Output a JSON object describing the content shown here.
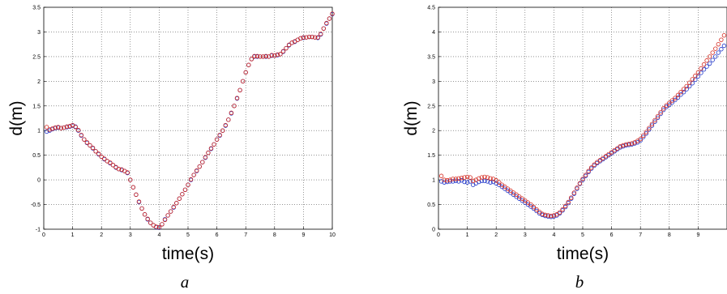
{
  "colors": {
    "series_a": "#1f35c8",
    "series_b": "#d4281e"
  },
  "chart_data": [
    {
      "type": "scatter",
      "panel_label": "a",
      "xlabel": "time(s)",
      "ylabel": "d(m)",
      "xlim": [
        0,
        10
      ],
      "ylim": [
        -1,
        3.5
      ],
      "xticks": [
        0,
        1,
        2,
        3,
        4,
        5,
        6,
        7,
        8,
        9,
        10
      ],
      "xtick_labels": [
        "0",
        "1",
        "2",
        "3",
        "4",
        "5",
        "6",
        "7",
        "8",
        "9",
        "10"
      ],
      "yticks": [
        -1,
        -0.5,
        0,
        0.5,
        1,
        1.5,
        2,
        2.5,
        3,
        3.5
      ],
      "ytick_labels": [
        "-1",
        "-0.5",
        "0",
        "0.5",
        "1",
        "1.5",
        "2",
        "2.5",
        "3",
        "3.5"
      ],
      "grid": true,
      "marker": "circle-open",
      "series": [
        {
          "color": "#1f35c8",
          "x": [
            0.1,
            0.2,
            0.3,
            0.4,
            0.5,
            0.6,
            0.7,
            0.8,
            0.9,
            1.0,
            1.1,
            1.2,
            1.3,
            1.4,
            1.5,
            1.6,
            1.7,
            1.8,
            1.9,
            2.0,
            2.1,
            2.2,
            2.3,
            2.4,
            2.5,
            2.6,
            2.7,
            2.8,
            2.9,
            3.0,
            3.1,
            3.2,
            3.3,
            3.4,
            3.5,
            3.6,
            3.7,
            3.8,
            3.9,
            4.0,
            4.1,
            4.2,
            4.3,
            4.4,
            4.5,
            4.6,
            4.7,
            4.8,
            4.9,
            5.0,
            5.1,
            5.2,
            5.3,
            5.4,
            5.5,
            5.6,
            5.7,
            5.8,
            5.9,
            6.0,
            6.1,
            6.2,
            6.3,
            6.4,
            6.5,
            6.6,
            6.7,
            6.8,
            6.9,
            7.0,
            7.1,
            7.2,
            7.3,
            7.4,
            7.5,
            7.6,
            7.7,
            7.8,
            7.9,
            8.0,
            8.1,
            8.2,
            8.3,
            8.4,
            8.5,
            8.6,
            8.7,
            8.8,
            8.9,
            9.0,
            9.1,
            9.2,
            9.3,
            9.4,
            9.5,
            9.6,
            9.7,
            9.8,
            9.9,
            10.0
          ],
          "y": [
            0.98,
            1.0,
            1.03,
            1.05,
            1.06,
            1.05,
            1.06,
            1.07,
            1.08,
            1.1,
            1.08,
            1.0,
            0.9,
            0.82,
            0.75,
            0.7,
            0.64,
            0.58,
            0.52,
            0.47,
            0.42,
            0.38,
            0.34,
            0.3,
            0.25,
            0.22,
            0.2,
            0.18,
            0.14,
            0.0,
            -0.15,
            -0.3,
            -0.45,
            -0.58,
            -0.7,
            -0.8,
            -0.87,
            -0.92,
            -0.96,
            -0.97,
            -0.9,
            -0.8,
            -0.72,
            -0.64,
            -0.56,
            -0.47,
            -0.38,
            -0.29,
            -0.2,
            -0.1,
            0.0,
            0.1,
            0.18,
            0.27,
            0.36,
            0.45,
            0.55,
            0.63,
            0.72,
            0.82,
            0.9,
            1.0,
            1.1,
            1.22,
            1.35,
            1.5,
            1.65,
            1.82,
            2.0,
            2.18,
            2.33,
            2.45,
            2.5,
            2.5,
            2.5,
            2.5,
            2.5,
            2.5,
            2.52,
            2.52,
            2.53,
            2.55,
            2.6,
            2.67,
            2.73,
            2.78,
            2.8,
            2.84,
            2.87,
            2.88,
            2.89,
            2.9,
            2.9,
            2.89,
            2.88,
            2.95,
            3.07,
            3.17,
            3.27,
            3.36
          ]
        },
        {
          "color": "#d4281e",
          "x": [
            0.1,
            0.2,
            0.3,
            0.4,
            0.5,
            0.6,
            0.7,
            0.8,
            0.9,
            1.0,
            1.1,
            1.2,
            1.3,
            1.4,
            1.5,
            1.6,
            1.7,
            1.8,
            1.9,
            2.0,
            2.1,
            2.2,
            2.3,
            2.4,
            2.5,
            2.6,
            2.7,
            2.8,
            2.9,
            3.0,
            3.1,
            3.2,
            3.3,
            3.4,
            3.5,
            3.6,
            3.7,
            3.8,
            3.9,
            4.0,
            4.1,
            4.2,
            4.3,
            4.4,
            4.5,
            4.6,
            4.7,
            4.8,
            4.9,
            5.0,
            5.1,
            5.2,
            5.3,
            5.4,
            5.5,
            5.6,
            5.7,
            5.8,
            5.9,
            6.0,
            6.1,
            6.2,
            6.3,
            6.4,
            6.5,
            6.6,
            6.7,
            6.8,
            6.9,
            7.0,
            7.1,
            7.2,
            7.3,
            7.4,
            7.5,
            7.6,
            7.7,
            7.8,
            7.9,
            8.0,
            8.1,
            8.2,
            8.3,
            8.4,
            8.5,
            8.6,
            8.7,
            8.8,
            8.9,
            9.0,
            9.1,
            9.2,
            9.3,
            9.4,
            9.5,
            9.6,
            9.7,
            9.8,
            9.9,
            10.0
          ],
          "y": [
            1.07,
            1.02,
            1.04,
            1.06,
            1.07,
            1.05,
            1.06,
            1.08,
            1.09,
            1.11,
            1.07,
            1.01,
            0.91,
            0.82,
            0.76,
            0.7,
            0.65,
            0.58,
            0.53,
            0.47,
            0.43,
            0.38,
            0.35,
            0.3,
            0.26,
            0.22,
            0.21,
            0.18,
            0.15,
            0.0,
            -0.15,
            -0.3,
            -0.44,
            -0.58,
            -0.7,
            -0.79,
            -0.87,
            -0.92,
            -0.95,
            -0.96,
            -0.9,
            -0.81,
            -0.72,
            -0.64,
            -0.55,
            -0.47,
            -0.38,
            -0.29,
            -0.2,
            -0.1,
            0.01,
            0.1,
            0.19,
            0.27,
            0.36,
            0.46,
            0.55,
            0.64,
            0.72,
            0.82,
            0.91,
            1.0,
            1.11,
            1.22,
            1.36,
            1.5,
            1.66,
            1.82,
            2.0,
            2.18,
            2.33,
            2.45,
            2.51,
            2.51,
            2.5,
            2.5,
            2.51,
            2.5,
            2.53,
            2.52,
            2.54,
            2.55,
            2.61,
            2.67,
            2.74,
            2.78,
            2.81,
            2.84,
            2.87,
            2.89,
            2.89,
            2.9,
            2.9,
            2.89,
            2.89,
            2.96,
            3.07,
            3.18,
            3.27,
            3.37
          ]
        }
      ]
    },
    {
      "type": "scatter",
      "panel_label": "b",
      "xlabel": "time(s)",
      "ylabel": "d(m)",
      "xlim": [
        0,
        10
      ],
      "ylim": [
        0,
        4.5
      ],
      "xticks": [
        0,
        1,
        2,
        3,
        4,
        5,
        6,
        7,
        8,
        9
      ],
      "xtick_labels": [
        "0",
        "1",
        "2",
        "3",
        "4",
        "5",
        "6",
        "7",
        "8",
        "9"
      ],
      "yticks": [
        0,
        0.5,
        1,
        1.5,
        2,
        2.5,
        3,
        3.5,
        4,
        4.5
      ],
      "ytick_labels": [
        "0",
        "0.5",
        "1",
        "1.5",
        "2",
        "2.5",
        "3",
        "3.5",
        "4",
        "4.5"
      ],
      "grid": true,
      "marker": "circle-open",
      "series": [
        {
          "color": "#1f35c8",
          "x": [
            0.1,
            0.2,
            0.3,
            0.4,
            0.5,
            0.6,
            0.7,
            0.8,
            0.9,
            1.0,
            1.1,
            1.2,
            1.3,
            1.4,
            1.5,
            1.6,
            1.7,
            1.8,
            1.9,
            2.0,
            2.1,
            2.2,
            2.3,
            2.4,
            2.5,
            2.6,
            2.7,
            2.8,
            2.9,
            3.0,
            3.1,
            3.2,
            3.3,
            3.4,
            3.5,
            3.6,
            3.7,
            3.8,
            3.9,
            4.0,
            4.1,
            4.2,
            4.3,
            4.4,
            4.5,
            4.6,
            4.7,
            4.8,
            4.9,
            5.0,
            5.1,
            5.2,
            5.3,
            5.4,
            5.5,
            5.6,
            5.7,
            5.8,
            5.9,
            6.0,
            6.1,
            6.2,
            6.3,
            6.4,
            6.5,
            6.6,
            6.7,
            6.8,
            6.9,
            7.0,
            7.1,
            7.2,
            7.3,
            7.4,
            7.5,
            7.6,
            7.7,
            7.8,
            7.9,
            8.0,
            8.1,
            8.2,
            8.3,
            8.4,
            8.5,
            8.6,
            8.7,
            8.8,
            8.9,
            9.0,
            9.1,
            9.2,
            9.3,
            9.4,
            9.5,
            9.6,
            9.7,
            9.8,
            9.9
          ],
          "y": [
            0.97,
            0.95,
            0.96,
            0.97,
            0.97,
            0.98,
            0.97,
            0.99,
            0.96,
            0.95,
            0.97,
            0.9,
            0.93,
            0.96,
            0.98,
            0.98,
            0.97,
            0.95,
            0.96,
            0.93,
            0.9,
            0.86,
            0.82,
            0.78,
            0.74,
            0.7,
            0.66,
            0.62,
            0.58,
            0.54,
            0.5,
            0.46,
            0.42,
            0.37,
            0.32,
            0.29,
            0.27,
            0.26,
            0.25,
            0.26,
            0.28,
            0.32,
            0.38,
            0.45,
            0.53,
            0.62,
            0.72,
            0.82,
            0.92,
            1.0,
            1.08,
            1.16,
            1.23,
            1.29,
            1.34,
            1.38,
            1.42,
            1.46,
            1.5,
            1.54,
            1.58,
            1.62,
            1.66,
            1.68,
            1.7,
            1.71,
            1.72,
            1.74,
            1.76,
            1.8,
            1.87,
            1.94,
            2.02,
            2.1,
            2.18,
            2.26,
            2.34,
            2.42,
            2.48,
            2.52,
            2.57,
            2.62,
            2.67,
            2.73,
            2.78,
            2.84,
            2.9,
            2.96,
            3.03,
            3.1,
            3.17,
            3.24,
            3.3,
            3.36,
            3.43,
            3.5,
            3.58,
            3.65,
            3.72
          ]
        },
        {
          "color": "#d4281e",
          "x": [
            0.1,
            0.2,
            0.3,
            0.4,
            0.5,
            0.6,
            0.7,
            0.8,
            0.9,
            1.0,
            1.1,
            1.2,
            1.3,
            1.4,
            1.5,
            1.6,
            1.7,
            1.8,
            1.9,
            2.0,
            2.1,
            2.2,
            2.3,
            2.4,
            2.5,
            2.6,
            2.7,
            2.8,
            2.9,
            3.0,
            3.1,
            3.2,
            3.3,
            3.4,
            3.5,
            3.6,
            3.7,
            3.8,
            3.9,
            4.0,
            4.1,
            4.2,
            4.3,
            4.4,
            4.5,
            4.6,
            4.7,
            4.8,
            4.9,
            5.0,
            5.1,
            5.2,
            5.3,
            5.4,
            5.5,
            5.6,
            5.7,
            5.8,
            5.9,
            6.0,
            6.1,
            6.2,
            6.3,
            6.4,
            6.5,
            6.6,
            6.7,
            6.8,
            6.9,
            7.0,
            7.1,
            7.2,
            7.3,
            7.4,
            7.5,
            7.6,
            7.7,
            7.8,
            7.9,
            8.0,
            8.1,
            8.2,
            8.3,
            8.4,
            8.5,
            8.6,
            8.7,
            8.8,
            8.9,
            9.0,
            9.1,
            9.2,
            9.3,
            9.4,
            9.5,
            9.6,
            9.7,
            9.8,
            9.9
          ],
          "y": [
            1.08,
            1.0,
            0.99,
            1.0,
            1.02,
            1.02,
            1.03,
            1.04,
            1.05,
            1.06,
            1.05,
            0.98,
            1.0,
            1.03,
            1.05,
            1.06,
            1.05,
            1.03,
            1.02,
            0.99,
            0.95,
            0.9,
            0.86,
            0.82,
            0.78,
            0.74,
            0.7,
            0.66,
            0.62,
            0.58,
            0.54,
            0.5,
            0.45,
            0.4,
            0.35,
            0.31,
            0.29,
            0.28,
            0.27,
            0.28,
            0.3,
            0.34,
            0.4,
            0.47,
            0.55,
            0.64,
            0.74,
            0.84,
            0.93,
            1.02,
            1.1,
            1.18,
            1.25,
            1.31,
            1.36,
            1.4,
            1.44,
            1.48,
            1.52,
            1.56,
            1.6,
            1.64,
            1.68,
            1.7,
            1.72,
            1.73,
            1.74,
            1.76,
            1.79,
            1.83,
            1.9,
            1.97,
            2.05,
            2.13,
            2.21,
            2.29,
            2.37,
            2.45,
            2.51,
            2.56,
            2.61,
            2.66,
            2.72,
            2.78,
            2.84,
            2.9,
            2.97,
            3.04,
            3.11,
            3.18,
            3.26,
            3.34,
            3.42,
            3.5,
            3.58,
            3.66,
            3.75,
            3.84,
            3.93
          ]
        }
      ]
    }
  ]
}
